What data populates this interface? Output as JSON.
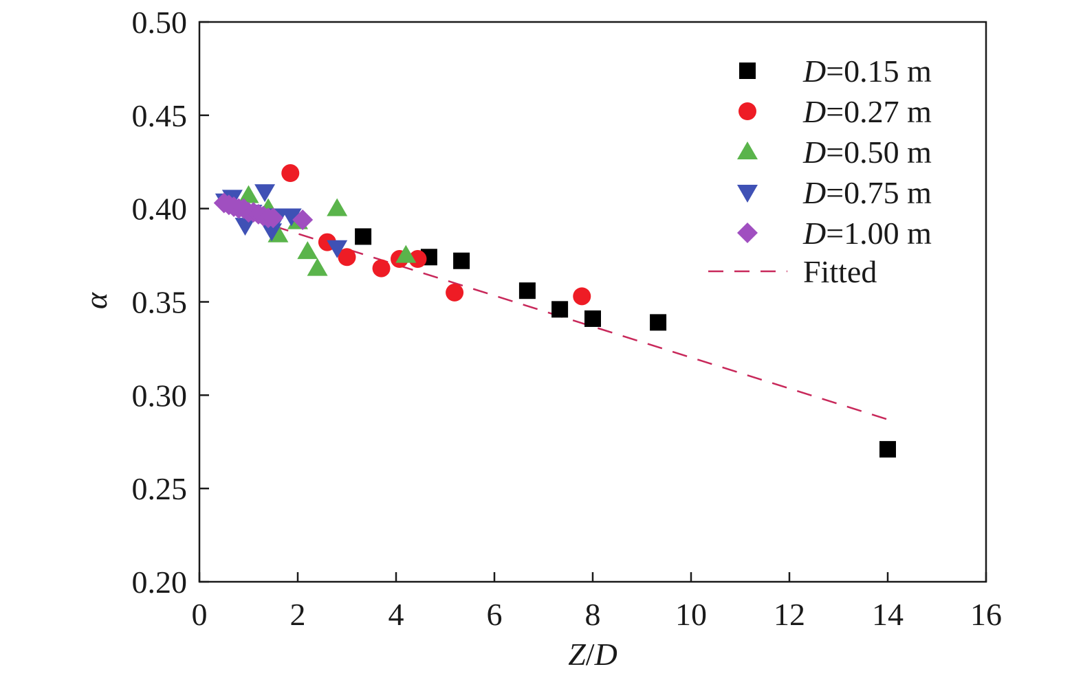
{
  "chart_data": {
    "type": "scatter",
    "title": "",
    "xlabel_parts": [
      "Z",
      "/",
      "D"
    ],
    "ylabel": "α",
    "xlim": [
      0,
      16
    ],
    "ylim": [
      0.2,
      0.5
    ],
    "xticks": [
      "0",
      "2",
      "4",
      "6",
      "8",
      "10",
      "12",
      "14",
      "16"
    ],
    "yticks": [
      "0.20",
      "0.25",
      "0.30",
      "0.35",
      "0.40",
      "0.45",
      "0.50"
    ],
    "grid": false,
    "legend_position": "top-right",
    "series": [
      {
        "name": "D=0.15 m",
        "label_italic": "D",
        "label_rest": "=0.15 m",
        "marker": "square",
        "color": "#000000",
        "points": [
          [
            3.33,
            0.385
          ],
          [
            4.67,
            0.374
          ],
          [
            5.33,
            0.372
          ],
          [
            6.67,
            0.356
          ],
          [
            7.33,
            0.346
          ],
          [
            8.0,
            0.341
          ],
          [
            9.33,
            0.339
          ],
          [
            14.0,
            0.271
          ]
        ]
      },
      {
        "name": "D=0.27 m",
        "label_italic": "D",
        "label_rest": "=0.27 m",
        "marker": "circle",
        "color": "#ee1c25",
        "points": [
          [
            1.85,
            0.419
          ],
          [
            2.6,
            0.382
          ],
          [
            3.0,
            0.374
          ],
          [
            3.7,
            0.368
          ],
          [
            4.07,
            0.373
          ],
          [
            4.44,
            0.373
          ],
          [
            5.19,
            0.355
          ],
          [
            7.78,
            0.353
          ]
        ]
      },
      {
        "name": "D=0.50 m",
        "label_italic": "D",
        "label_rest": "=0.50 m",
        "marker": "triangle-up",
        "color": "#5ab44b",
        "points": [
          [
            1.0,
            0.407
          ],
          [
            1.4,
            0.4
          ],
          [
            1.6,
            0.386
          ],
          [
            2.0,
            0.393
          ],
          [
            2.2,
            0.377
          ],
          [
            2.4,
            0.368
          ],
          [
            2.8,
            0.4
          ],
          [
            4.2,
            0.375
          ]
        ]
      },
      {
        "name": "D=0.75 m",
        "label_italic": "D",
        "label_rest": "=0.75 m",
        "marker": "triangle-down",
        "color": "#3f51b5",
        "points": [
          [
            0.53,
            0.404
          ],
          [
            0.67,
            0.406
          ],
          [
            0.93,
            0.391
          ],
          [
            1.07,
            0.398
          ],
          [
            1.33,
            0.409
          ],
          [
            1.47,
            0.388
          ],
          [
            1.6,
            0.396
          ],
          [
            1.87,
            0.396
          ],
          [
            2.8,
            0.379
          ]
        ]
      },
      {
        "name": "D=1.00 m",
        "label_italic": "D",
        "label_rest": "=1.00 m",
        "marker": "diamond",
        "color": "#a04fc0",
        "points": [
          [
            0.5,
            0.403
          ],
          [
            0.6,
            0.402
          ],
          [
            0.7,
            0.401
          ],
          [
            0.8,
            0.4
          ],
          [
            0.9,
            0.4
          ],
          [
            1.0,
            0.398
          ],
          [
            1.1,
            0.398
          ],
          [
            1.2,
            0.397
          ],
          [
            1.3,
            0.396
          ],
          [
            1.4,
            0.395
          ],
          [
            1.5,
            0.395
          ],
          [
            2.1,
            0.394
          ]
        ]
      }
    ],
    "fit": {
      "name": "Fitted",
      "color": "#c8285a",
      "style": "dashed",
      "points": [
        [
          0.5,
          0.399
        ],
        [
          14.0,
          0.287
        ]
      ]
    }
  }
}
